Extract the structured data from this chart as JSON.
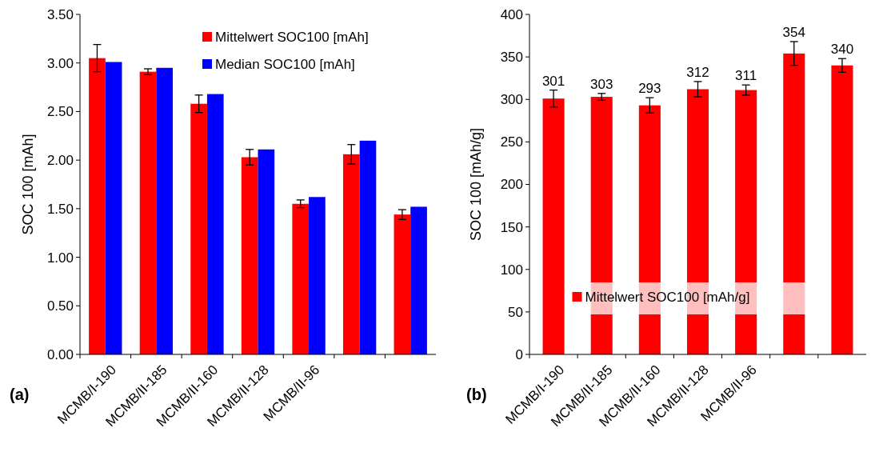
{
  "chart_data": [
    {
      "type": "bar",
      "ylabel": "SOC 100 [mAh]",
      "annotations": [
        "(a)"
      ],
      "categories": [
        "MCMB/I-190",
        "MCMB/II-185",
        "MCMB/II-160",
        "MCMB/II-128",
        "MCMB/II-96",
        null,
        null
      ],
      "series": [
        {
          "name": "Mittelwert SOC100 [mAh]",
          "color": "#ff0000",
          "values": [
            3.05,
            2.91,
            2.58,
            2.03,
            1.55,
            2.06,
            1.44
          ],
          "errors": [
            0.14,
            0.03,
            0.09,
            0.08,
            0.04,
            0.1,
            0.05
          ]
        },
        {
          "name": "Median SOC100 [mAh]",
          "color": "#0000ff",
          "values": [
            3.01,
            2.95,
            2.68,
            2.11,
            1.62,
            2.2,
            1.52
          ]
        }
      ],
      "ylim": [
        0,
        3.5
      ],
      "yticks": [
        {
          "value": 0,
          "label": "0.00"
        },
        {
          "value": 0.5,
          "label": "0.50"
        },
        {
          "value": 1,
          "label": "1.00"
        },
        {
          "value": 1.5,
          "label": "1.50"
        },
        {
          "value": 2,
          "label": "2.00"
        },
        {
          "value": 2.5,
          "label": "2.50"
        },
        {
          "value": 3,
          "label": "3.00"
        },
        {
          "value": 3.5,
          "label": "3.50"
        }
      ],
      "legend": "top right"
    },
    {
      "type": "bar",
      "ylabel": "SOC 100 [mAh/g]",
      "annotations": [
        "(b)"
      ],
      "categories": [
        "MCMB/I-190",
        "MCMB/II-185",
        "MCMB/II-160",
        "MCMB/II-128",
        "MCMB/II-96",
        null,
        null
      ],
      "series": [
        {
          "name": "Mittelwert SOC100 [mAh/g]",
          "color": "#ff0000",
          "values": [
            301,
            303,
            293,
            312,
            311,
            354,
            340
          ],
          "errors": [
            10,
            4,
            9,
            9,
            6,
            14,
            8
          ]
        }
      ],
      "data_labels": true,
      "ylim": [
        0,
        400
      ],
      "yticks": [
        0,
        50,
        100,
        150,
        200,
        250,
        300,
        350,
        400
      ],
      "legend": "bottom"
    }
  ]
}
